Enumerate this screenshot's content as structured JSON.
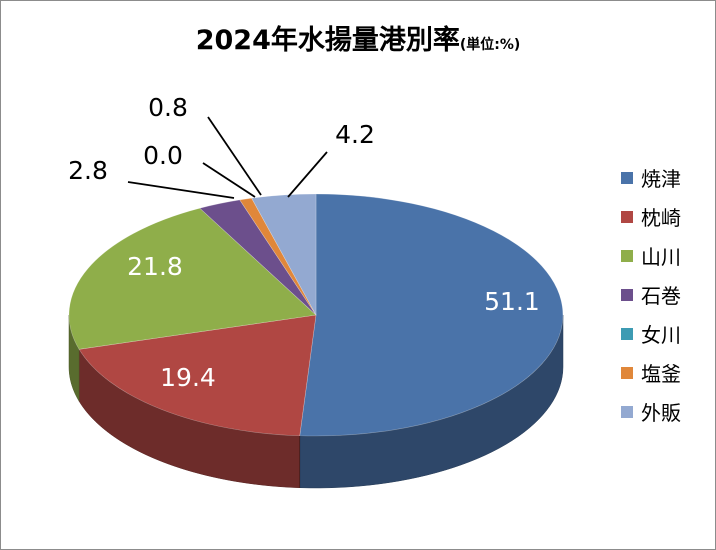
{
  "chart_data": {
    "type": "pie",
    "title": "2024年水揚量港別率",
    "unit_label": "(単位:%)",
    "three_d": true,
    "legend_position": "right",
    "categories": [
      "焼津",
      "枕崎",
      "山川",
      "石巻",
      "女川",
      "塩釜",
      "外販"
    ],
    "values": [
      51.1,
      19.4,
      21.8,
      2.8,
      0.0,
      0.8,
      4.2
    ],
    "data_labels": [
      "51.1",
      "19.4",
      "21.8",
      "2.8",
      "0.0",
      "0.8",
      "4.2"
    ],
    "colors": [
      "#4a73a9",
      "#b04743",
      "#8fae4a",
      "#6c4f8c",
      "#3d9bb3",
      "#e0873a",
      "#93a9d1"
    ]
  }
}
